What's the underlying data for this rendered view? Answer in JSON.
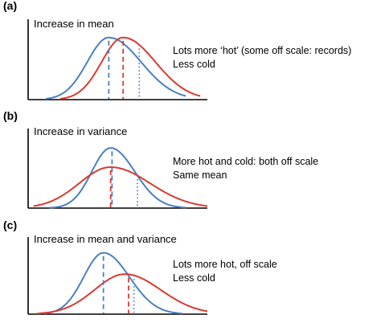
{
  "colors": {
    "original": "#4a7fc1",
    "shifted": "#d93a30",
    "axis": "#000000"
  },
  "chart_data": [
    {
      "type": "line",
      "panel_label": "(a)",
      "title": "Increase in mean",
      "annotation_lines": [
        "Lots more ‘hot’ (some off scale: records)",
        "Less cold"
      ],
      "xlim": [
        0,
        10
      ],
      "ylim": [
        0,
        1
      ],
      "series": [
        {
          "role": "original",
          "color": "#4a7fc1",
          "mean": 4.5,
          "sd_left": 1.2,
          "sd_right": 1.8,
          "peak": 0.92,
          "x_start": 1.0,
          "x_end": 8.8
        },
        {
          "role": "shifted",
          "color": "#d93a30",
          "mean": 5.3,
          "sd_left": 1.2,
          "sd_right": 1.8,
          "peak": 0.92,
          "x_start": 1.8,
          "x_end": 9.6
        }
      ],
      "markers": [
        {
          "x": 4.5,
          "color": "#4a7fc1",
          "style": "dashed"
        },
        {
          "x": 5.3,
          "color": "#d93a30",
          "style": "dashed"
        },
        {
          "x": 6.2,
          "color": "#4a7fc1",
          "style": "dotted"
        }
      ]
    },
    {
      "type": "line",
      "panel_label": "(b)",
      "title": "Increase in variance",
      "annotation_lines": [
        "More hot and cold: both off scale",
        "Same mean"
      ],
      "xlim": [
        0,
        10
      ],
      "ylim": [
        0,
        1
      ],
      "series": [
        {
          "role": "original",
          "color": "#4a7fc1",
          "mean": 4.6,
          "sd_left": 1.05,
          "sd_right": 1.35,
          "peak": 0.88,
          "x_start": 1.2,
          "x_end": 8.8
        },
        {
          "role": "shifted",
          "color": "#d93a30",
          "mean": 4.6,
          "sd_left": 1.75,
          "sd_right": 2.2,
          "peak": 0.6,
          "x_start": 0.3,
          "x_end": 10.0
        }
      ],
      "markers": [
        {
          "x": 4.6,
          "color": "#d93a30",
          "style": "dashed"
        },
        {
          "x": 4.68,
          "color": "#4a7fc1",
          "style": "dashed"
        },
        {
          "x": 6.1,
          "color": "#4a7fc1",
          "style": "dotted"
        }
      ]
    },
    {
      "type": "line",
      "panel_label": "(c)",
      "title": "Increase in mean and variance",
      "annotation_lines": [
        "Lots more hot, off scale",
        "Less cold"
      ],
      "xlim": [
        0,
        10
      ],
      "ylim": [
        0,
        1
      ],
      "series": [
        {
          "role": "original",
          "color": "#4a7fc1",
          "mean": 4.2,
          "sd_left": 1.1,
          "sd_right": 1.45,
          "peak": 0.92,
          "x_start": 0.9,
          "x_end": 8.6
        },
        {
          "role": "shifted",
          "color": "#d93a30",
          "mean": 5.4,
          "sd_left": 1.7,
          "sd_right": 2.0,
          "peak": 0.6,
          "x_start": 0.5,
          "x_end": 10.0
        }
      ],
      "markers": [
        {
          "x": 4.2,
          "color": "#4a7fc1",
          "style": "dashed"
        },
        {
          "x": 5.6,
          "color": "#d93a30",
          "style": "dashed"
        },
        {
          "x": 5.9,
          "color": "#4a7fc1",
          "style": "dotted"
        }
      ]
    }
  ]
}
